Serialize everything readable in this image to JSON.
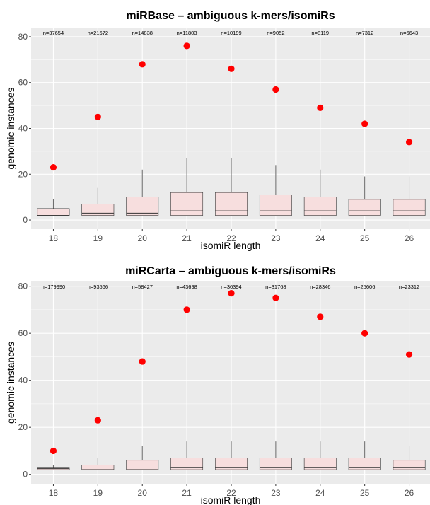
{
  "chart_data": [
    {
      "type": "box",
      "title": "miRBase – ambiguous k-mers/isomiRs",
      "xlabel": "isomiR length",
      "ylabel": "genomic instances",
      "categories": [
        "18",
        "19",
        "20",
        "21",
        "22",
        "23",
        "24",
        "25",
        "26"
      ],
      "ylim": [
        -4,
        84
      ],
      "yticks": [
        0,
        20,
        40,
        60,
        80
      ],
      "grid": true,
      "n_labels": [
        "n=37654",
        "n=21672",
        "n=14838",
        "n=11803",
        "n=10199",
        "n=9052",
        "n=8119",
        "n=7312",
        "n=6643"
      ],
      "boxes": [
        {
          "min": 2,
          "q1": 2,
          "median": 2,
          "q3": 5,
          "max": 9
        },
        {
          "min": 2,
          "q1": 2,
          "median": 3,
          "q3": 7,
          "max": 14
        },
        {
          "min": 2,
          "q1": 2,
          "median": 3,
          "q3": 10,
          "max": 22
        },
        {
          "min": 2,
          "q1": 2,
          "median": 4,
          "q3": 12,
          "max": 27
        },
        {
          "min": 2,
          "q1": 2,
          "median": 4,
          "q3": 12,
          "max": 27
        },
        {
          "min": 2,
          "q1": 2,
          "median": 4,
          "q3": 11,
          "max": 24
        },
        {
          "min": 2,
          "q1": 2,
          "median": 4,
          "q3": 10,
          "max": 22
        },
        {
          "min": 2,
          "q1": 2,
          "median": 4,
          "q3": 9,
          "max": 19
        },
        {
          "min": 2,
          "q1": 2,
          "median": 4,
          "q3": 9,
          "max": 19
        }
      ],
      "max_points": [
        23,
        45,
        68,
        76,
        66,
        57,
        49,
        42,
        34
      ],
      "colors": {
        "box_fill": "#f7dede",
        "box_stroke": "#333333",
        "point": "#ff0000",
        "panel": "#ebebeb",
        "grid": "#ffffff"
      }
    },
    {
      "type": "box",
      "title": "miRCarta – ambiguous k-mers/isomiRs",
      "xlabel": "isomiR length",
      "ylabel": "genomic instances",
      "categories": [
        "18",
        "19",
        "20",
        "21",
        "22",
        "23",
        "24",
        "25",
        "26"
      ],
      "ylim": [
        -4,
        82
      ],
      "yticks": [
        0,
        20,
        40,
        60,
        80
      ],
      "grid": true,
      "n_labels": [
        "n=179990",
        "n=93566",
        "n=58427",
        "n=43698",
        "n=36394",
        "n=31768",
        "n=28346",
        "n=25606",
        "n=23312"
      ],
      "boxes": [
        {
          "min": 2,
          "q1": 2,
          "median": 2.5,
          "q3": 3,
          "max": 4
        },
        {
          "min": 2,
          "q1": 2,
          "median": 2,
          "q3": 4,
          "max": 7
        },
        {
          "min": 2,
          "q1": 2,
          "median": 2,
          "q3": 6,
          "max": 12
        },
        {
          "min": 2,
          "q1": 2,
          "median": 3,
          "q3": 7,
          "max": 14
        },
        {
          "min": 2,
          "q1": 2,
          "median": 3,
          "q3": 7,
          "max": 14
        },
        {
          "min": 2,
          "q1": 2,
          "median": 3,
          "q3": 7,
          "max": 14
        },
        {
          "min": 2,
          "q1": 2,
          "median": 3,
          "q3": 7,
          "max": 14
        },
        {
          "min": 2,
          "q1": 2,
          "median": 3,
          "q3": 7,
          "max": 14
        },
        {
          "min": 2,
          "q1": 2,
          "median": 3,
          "q3": 6,
          "max": 12
        }
      ],
      "max_points": [
        10,
        23,
        48,
        70,
        77,
        75,
        67,
        60,
        51
      ],
      "colors": {
        "box_fill": "#f7dede",
        "box_stroke": "#333333",
        "point": "#ff0000",
        "panel": "#ebebeb",
        "grid": "#ffffff"
      }
    }
  ]
}
